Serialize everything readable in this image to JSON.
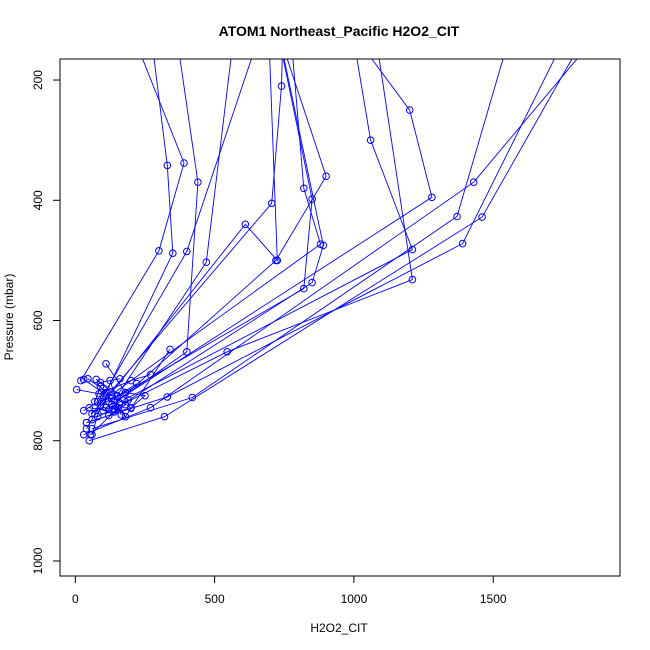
{
  "chart_data": {
    "type": "line",
    "title": "ATOM1 Northeast_Pacific H2O2_CIT",
    "xlabel": "H2O2_CIT",
    "ylabel": "Pressure (mbar)",
    "xlim": [
      -55,
      1955
    ],
    "ylim": [
      1025,
      165
    ],
    "y_reversed": true,
    "x_ticks": [
      0,
      500,
      1000,
      1500
    ],
    "y_ticks": [
      200,
      400,
      600,
      800,
      1000
    ],
    "grid": false,
    "series_color": "#0000ff",
    "markers": "open-circle",
    "series": [
      {
        "x": [
          30,
          270,
          1430,
          1900
        ],
        "y": [
          790,
          745,
          370,
          110
        ]
      },
      {
        "x": [
          50,
          320,
          1460,
          1850
        ],
        "y": [
          800,
          760,
          428,
          110
        ]
      },
      {
        "x": [
          60,
          420,
          1370,
          1620
        ],
        "y": [
          780,
          728,
          427,
          30
        ]
      },
      {
        "x": [
          40,
          330,
          1390,
          1800
        ],
        "y": [
          770,
          727,
          472,
          90
        ]
      },
      {
        "x": [
          80,
          545,
          1210,
          1050
        ],
        "y": [
          760,
          652,
          532,
          40
        ]
      },
      {
        "x": [
          100,
          1210,
          1060,
          980
        ],
        "y": [
          750,
          482,
          300,
          80
        ]
      },
      {
        "x": [
          110,
          1280,
          1200,
          960
        ],
        "y": [
          745,
          395,
          250,
          100
        ]
      },
      {
        "x": [
          95,
          880,
          820,
          760
        ],
        "y": [
          735,
          473,
          380,
          50
        ]
      },
      {
        "x": [
          120,
          820,
          850,
          700
        ],
        "y": [
          735,
          547,
          398,
          60
        ]
      },
      {
        "x": [
          140,
          850,
          890,
          720
        ],
        "y": [
          748,
          537,
          475,
          100
        ]
      },
      {
        "x": [
          60,
          705,
          740,
          750
        ],
        "y": [
          755,
          405,
          210,
          20
        ]
      },
      {
        "x": [
          70,
          610,
          725,
          690
        ],
        "y": [
          755,
          440,
          500,
          70
        ]
      },
      {
        "x": [
          120,
          720,
          900,
          700
        ],
        "y": [
          748,
          500,
          360,
          80
        ]
      },
      {
        "x": [
          130,
          400,
          440,
          340
        ],
        "y": [
          740,
          652,
          370,
          50
        ]
      },
      {
        "x": [
          150,
          470,
          560,
          500
        ],
        "y": [
          725,
          503,
          160,
          50
        ]
      },
      {
        "x": [
          100,
          400,
          650,
          600
        ],
        "y": [
          725,
          485,
          140,
          90
        ]
      },
      {
        "x": [
          110,
          350,
          330,
          260
        ],
        "y": [
          720,
          488,
          342,
          80
        ]
      },
      {
        "x": [
          20,
          300,
          390,
          160
        ],
        "y": [
          700,
          484,
          338,
          70
        ]
      },
      {
        "x": [
          70,
          90,
          180,
          340
        ],
        "y": [
          735,
          710,
          760,
          648
        ]
      },
      {
        "x": [
          200,
          250,
          180,
          110
        ],
        "y": [
          745,
          725,
          720,
          672
        ]
      },
      {
        "x": [
          30,
          80,
          150,
          220
        ],
        "y": [
          750,
          735,
          726,
          705
        ]
      },
      {
        "x": [
          150,
          190,
          90,
          160
        ],
        "y": [
          745,
          732,
          703,
          697
        ]
      },
      {
        "x": [
          50,
          140,
          200,
          75
        ],
        "y": [
          745,
          752,
          746,
          698
        ]
      },
      {
        "x": [
          40,
          120,
          180,
          45
        ],
        "y": [
          770,
          758,
          740,
          697
        ]
      },
      {
        "x": [
          40,
          60,
          105,
          30
        ],
        "y": [
          780,
          765,
          722,
          698
        ]
      },
      {
        "x": [
          60,
          90,
          130,
          180
        ],
        "y": [
          790,
          742,
          730,
          720
        ]
      },
      {
        "x": [
          5,
          85,
          200,
          270
        ],
        "y": [
          715,
          722,
          700,
          690
        ]
      },
      {
        "x": [
          55,
          155,
          165,
          125
        ],
        "y": [
          790,
          745,
          757,
          700
        ]
      }
    ]
  }
}
